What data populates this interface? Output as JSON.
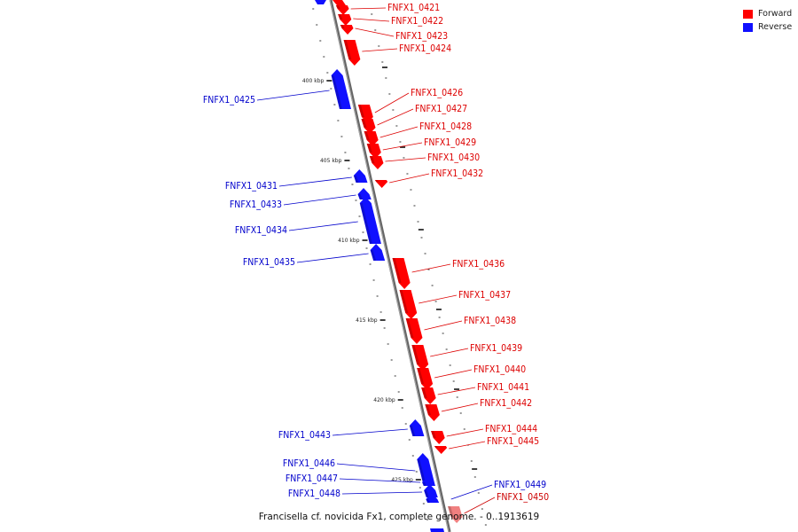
{
  "legend": {
    "forward_label": "Forward",
    "reverse_label": "Reverse",
    "forward_color": "#ff0000",
    "reverse_color": "#1010ff"
  },
  "caption": "Francisella cf. novicida Fx1, complete genome. - 0..1913619",
  "scale_ticks": [
    "400 kbp",
    "405 kbp",
    "410 kbp",
    "415 kbp",
    "420 kbp",
    "425 kbp"
  ],
  "forward_genes": [
    "FNFX1_0421",
    "FNFX1_0422",
    "FNFX1_0423",
    "FNFX1_0424",
    "FNFX1_0426",
    "FNFX1_0427",
    "FNFX1_0428",
    "FNFX1_0429",
    "FNFX1_0430",
    "FNFX1_0432",
    "FNFX1_0436",
    "FNFX1_0437",
    "FNFX1_0438",
    "FNFX1_0439",
    "FNFX1_0440",
    "FNFX1_0441",
    "FNFX1_0442",
    "FNFX1_0444",
    "FNFX1_0445",
    "FNFX1_0450"
  ],
  "reverse_genes": [
    "FNFX1_0425",
    "FNFX1_0431",
    "FNFX1_0433",
    "FNFX1_0434",
    "FNFX1_0435",
    "FNFX1_0443",
    "FNFX1_0446",
    "FNFX1_0447",
    "FNFX1_0448",
    "FNFX1_0449"
  ]
}
